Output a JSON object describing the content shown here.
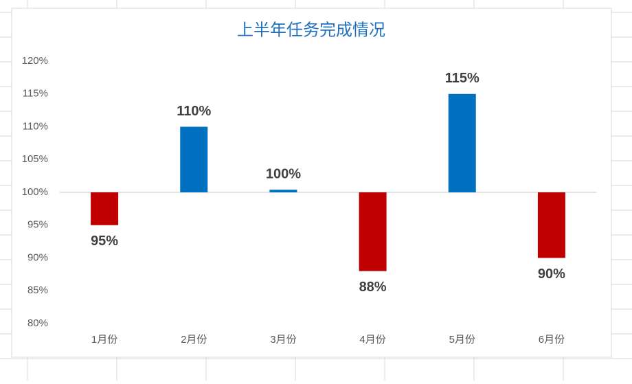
{
  "chart_data": {
    "type": "bar",
    "title": "上半年任务完成情况",
    "categories": [
      "1月份",
      "2月份",
      "3月份",
      "4月份",
      "5月份",
      "6月份"
    ],
    "values": [
      95,
      110,
      100.4,
      88,
      115,
      90
    ],
    "value_labels": [
      "95%",
      "110%",
      "100%",
      "88%",
      "115%",
      "90%"
    ],
    "color": "#0070c0",
    "negative_color": "#c00000",
    "x_axis_crosses": 100,
    "ylim": [
      80,
      120
    ],
    "yticks": [
      {
        "value": 80,
        "label": "80%"
      },
      {
        "value": 85,
        "label": "85%"
      },
      {
        "value": 90,
        "label": "90%"
      },
      {
        "value": 95,
        "label": "95%"
      },
      {
        "value": 100,
        "label": "100%"
      },
      {
        "value": 105,
        "label": "105%"
      },
      {
        "value": 110,
        "label": "110%"
      },
      {
        "value": 115,
        "label": "115%"
      },
      {
        "value": 120,
        "label": "120%"
      }
    ],
    "grid": false
  }
}
